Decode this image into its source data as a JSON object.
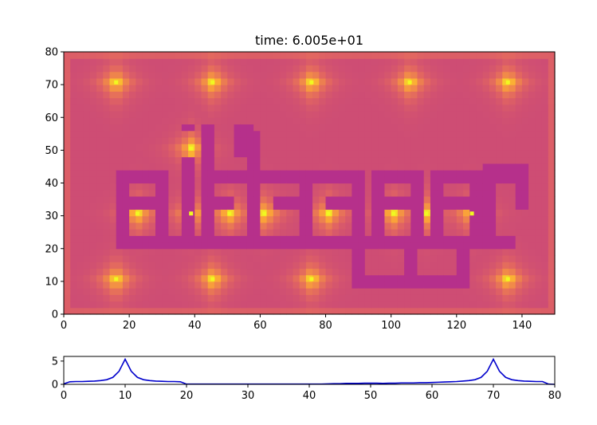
{
  "chart_data": [
    {
      "type": "heatmap",
      "title": "time: 6.005e+01",
      "xlabel": "",
      "ylabel": "",
      "xlim": [
        0,
        150
      ],
      "ylim": [
        0,
        80
      ],
      "xticks": [
        "0",
        "20",
        "40",
        "60",
        "80",
        "100",
        "120",
        "140"
      ],
      "yticks": [
        "0",
        "10",
        "20",
        "30",
        "40",
        "50",
        "60",
        "70",
        "80"
      ],
      "colormap": [
        "#0d0887",
        "#6a00a8",
        "#b12a90",
        "#e16462",
        "#fca636",
        "#f0f921"
      ],
      "background_value": 0.52,
      "obstacle_value": 0.42,
      "sources": [
        {
          "x": 16,
          "y": 70.7
        },
        {
          "x": 45.5,
          "y": 70.7
        },
        {
          "x": 75.7,
          "y": 70.7
        },
        {
          "x": 105.7,
          "y": 70.7
        },
        {
          "x": 135.7,
          "y": 70.7
        },
        {
          "x": 16,
          "y": 10.7
        },
        {
          "x": 45.5,
          "y": 10.7
        },
        {
          "x": 75.7,
          "y": 10.7
        },
        {
          "x": 135.7,
          "y": 10.7
        },
        {
          "x": 38.9,
          "y": 50.5
        },
        {
          "x": 22.5,
          "y": 30.7
        },
        {
          "x": 38.9,
          "y": 30.7
        },
        {
          "x": 50.6,
          "y": 30.7
        },
        {
          "x": 61.3,
          "y": 30.7
        },
        {
          "x": 80.8,
          "y": 30.7
        },
        {
          "x": 100.7,
          "y": 30.7
        },
        {
          "x": 110.7,
          "y": 30.7
        },
        {
          "x": 124.7,
          "y": 30.7
        }
      ],
      "obstacles": [
        {
          "x": [
            16,
            138
          ],
          "y": [
            20,
            24
          ]
        },
        {
          "x": [
            89,
            124
          ],
          "y": [
            8,
            12
          ]
        },
        {
          "x": [
            89,
            93
          ],
          "y": [
            8,
            24
          ]
        },
        {
          "x": [
            104,
            108
          ],
          "y": [
            8,
            24
          ]
        },
        {
          "x": [
            120,
            124
          ],
          "y": [
            8,
            24
          ]
        },
        {
          "x": [
            16,
            20
          ],
          "y": [
            20,
            44
          ]
        },
        {
          "x": [
            16,
            32
          ],
          "y": [
            40,
            44
          ]
        },
        {
          "x": [
            28,
            32
          ],
          "y": [
            20,
            44
          ]
        },
        {
          "x": [
            20,
            28
          ],
          "y": [
            32,
            36
          ]
        },
        {
          "x": [
            36,
            41
          ],
          "y": [
            20,
            48
          ]
        },
        {
          "x": [
            36,
            41
          ],
          "y": [
            56,
            58
          ]
        },
        {
          "x": [
            43,
            47
          ],
          "y": [
            20,
            58
          ]
        },
        {
          "x": [
            43,
            60
          ],
          "y": [
            40,
            44
          ]
        },
        {
          "x": [
            56,
            60
          ],
          "y": [
            20,
            56
          ]
        },
        {
          "x": [
            52,
            58
          ],
          "y": [
            48,
            58
          ]
        },
        {
          "x": [
            47,
            52
          ],
          "y": [
            32,
            36
          ]
        },
        {
          "x": [
            60,
            76
          ],
          "y": [
            40,
            44
          ]
        },
        {
          "x": [
            72,
            76
          ],
          "y": [
            20,
            44
          ]
        },
        {
          "x": [
            64,
            72
          ],
          "y": [
            32,
            36
          ]
        },
        {
          "x": [
            76,
            92
          ],
          "y": [
            40,
            44
          ]
        },
        {
          "x": [
            88,
            92
          ],
          "y": [
            20,
            44
          ]
        },
        {
          "x": [
            80,
            88
          ],
          "y": [
            32,
            36
          ]
        },
        {
          "x": [
            94,
            110
          ],
          "y": [
            40,
            44
          ]
        },
        {
          "x": [
            94,
            98
          ],
          "y": [
            24,
            44
          ]
        },
        {
          "x": [
            106,
            110
          ],
          "y": [
            24,
            44
          ]
        },
        {
          "x": [
            98,
            106
          ],
          "y": [
            32,
            36
          ]
        },
        {
          "x": [
            112,
            128
          ],
          "y": [
            40,
            44
          ]
        },
        {
          "x": [
            112,
            116
          ],
          "y": [
            24,
            44
          ]
        },
        {
          "x": [
            124,
            128
          ],
          "y": [
            20,
            44
          ]
        },
        {
          "x": [
            116,
            124
          ],
          "y": [
            32,
            36
          ]
        },
        {
          "x": [
            128,
            140
          ],
          "y": [
            40,
            46
          ]
        },
        {
          "x": [
            128,
            132
          ],
          "y": [
            20,
            46
          ]
        },
        {
          "x": [
            138,
            143
          ],
          "y": [
            32,
            46
          ]
        }
      ]
    },
    {
      "type": "line",
      "title": "",
      "xlabel": "",
      "ylabel": "",
      "xlim": [
        0,
        80
      ],
      "ylim": [
        0,
        6
      ],
      "xticks": [
        "0",
        "10",
        "20",
        "30",
        "40",
        "50",
        "60",
        "70",
        "80"
      ],
      "yticks": [
        "0",
        "5"
      ],
      "color": "#0000cc",
      "x": [
        0,
        1,
        2,
        3,
        4,
        5,
        6,
        7,
        8,
        9,
        10,
        11,
        12,
        13,
        14,
        15,
        16,
        17,
        18,
        19,
        20,
        21,
        22,
        23,
        24,
        25,
        26,
        27,
        28,
        29,
        30,
        31,
        32,
        33,
        34,
        35,
        36,
        37,
        38,
        39,
        40,
        41,
        42,
        43,
        44,
        45,
        46,
        47,
        48,
        49,
        50,
        51,
        52,
        53,
        54,
        55,
        56,
        57,
        58,
        59,
        60,
        61,
        62,
        63,
        64,
        65,
        66,
        67,
        68,
        69,
        70,
        71,
        72,
        73,
        74,
        75,
        76,
        77,
        78,
        79,
        80
      ],
      "y": [
        0.1,
        0.55,
        0.6,
        0.6,
        0.65,
        0.7,
        0.8,
        1.0,
        1.5,
        2.8,
        5.4,
        2.8,
        1.5,
        1.0,
        0.8,
        0.7,
        0.65,
        0.6,
        0.6,
        0.55,
        0.05,
        0.05,
        0.05,
        0.05,
        0.05,
        0.05,
        0.05,
        0.05,
        0.05,
        0.05,
        0.05,
        0.05,
        0.05,
        0.05,
        0.05,
        0.05,
        0.05,
        0.05,
        0.05,
        0.05,
        0.05,
        0.05,
        0.05,
        0.1,
        0.15,
        0.15,
        0.2,
        0.2,
        0.2,
        0.25,
        0.25,
        0.25,
        0.2,
        0.25,
        0.25,
        0.3,
        0.3,
        0.3,
        0.35,
        0.35,
        0.4,
        0.45,
        0.5,
        0.55,
        0.6,
        0.7,
        0.8,
        1.0,
        1.5,
        2.8,
        5.4,
        2.8,
        1.5,
        1.0,
        0.8,
        0.7,
        0.65,
        0.6,
        0.6,
        0.05,
        0.0
      ]
    }
  ]
}
